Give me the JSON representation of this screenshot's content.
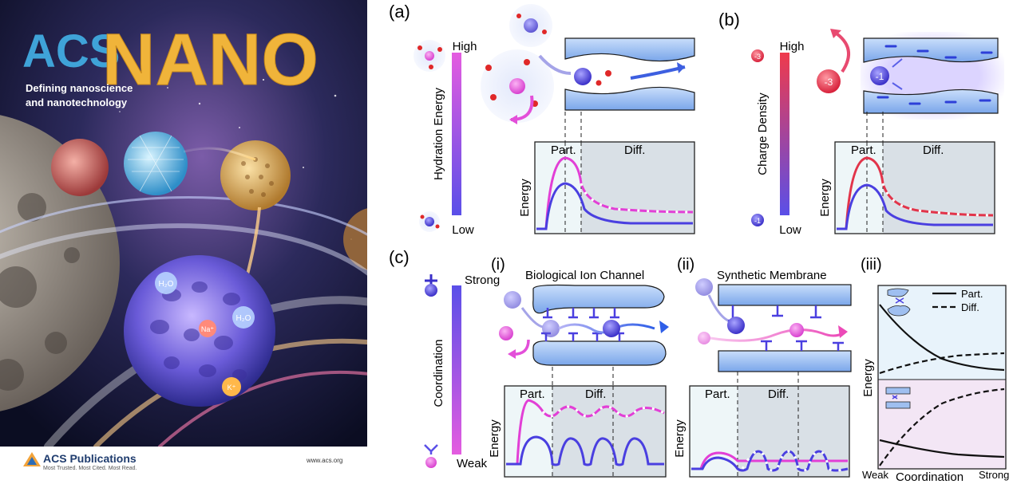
{
  "cover": {
    "brand": "ACS",
    "title": "NANO",
    "tagline_1": "Defining nanoscience",
    "tagline_2": "and nanotechnology",
    "ion_labels": [
      "H₂O",
      "Na⁺",
      "H₂O",
      "K⁺"
    ],
    "publisher": "ACS Publications",
    "publisher_motto": "Most Trusted. Most Cited. Most Read.",
    "url": "www.acs.org"
  },
  "panel_a": {
    "letter": "(a)",
    "scale_high": "High",
    "scale_low": "Low",
    "scale_title": "Hydration Energy",
    "zone_part": "Part.",
    "zone_diff": "Diff.",
    "y_axis": "Energy"
  },
  "panel_b": {
    "letter": "(b)",
    "scale_high": "High",
    "scale_low": "Low",
    "scale_title": "Charge Density",
    "ion_big": "-3",
    "ion_small": "-1",
    "ion_top": "-3",
    "ion_bottom": "-1",
    "zone_part": "Part.",
    "zone_diff": "Diff.",
    "y_axis": "Energy"
  },
  "panel_c": {
    "letter": "(c)",
    "scale_high": "Strong",
    "scale_low": "Weak",
    "scale_title": "Coordination",
    "sub_i": "(i)",
    "sub_i_title": "Biological Ion Channel",
    "sub_ii": "(ii)",
    "sub_ii_title": "Synthetic Membrane",
    "sub_iii": "(iii)",
    "zone_part": "Part.",
    "zone_diff": "Diff.",
    "y_axis": "Energy",
    "legend_part": "Part.",
    "legend_diff": "Diff.",
    "x_weak": "Weak",
    "x_title": "Coordination",
    "x_strong": "Strong"
  },
  "colors": {
    "pink": "#e23fd6",
    "blue": "#4a3fe0",
    "red": "#e2344a",
    "channel": "#8fb7ee",
    "zone_light": "#eef6f8",
    "zone_dark": "#d9e0e6"
  }
}
